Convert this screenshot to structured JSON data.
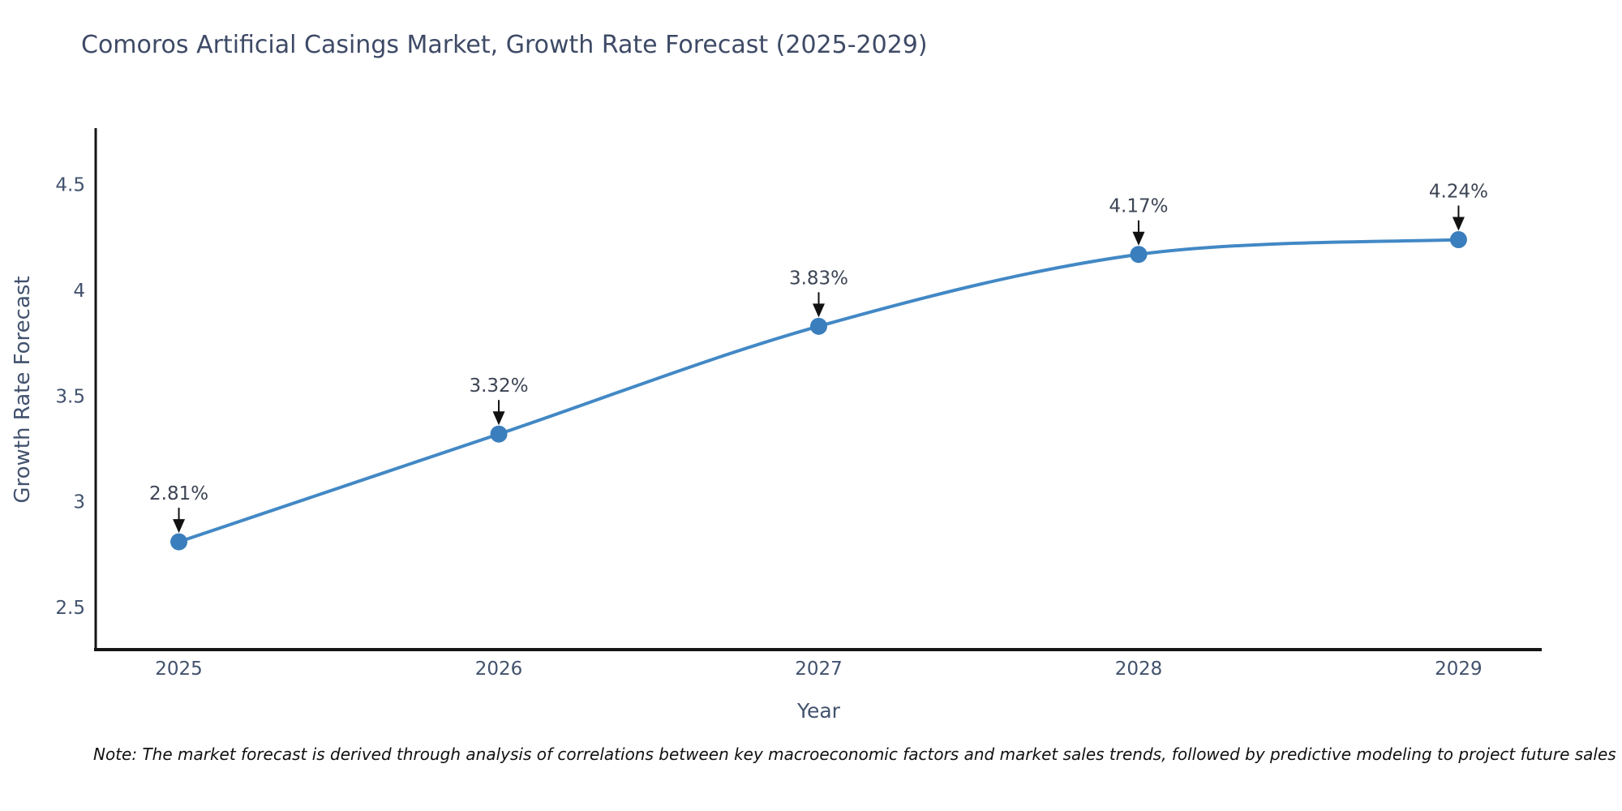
{
  "note": "Note: The market forecast is derived through analysis of correlations between key macroeconomic factors and market sales trends, followed by predictive modeling to project future sales",
  "chart_data": {
    "type": "line",
    "title": "Comoros Artificial Casings Market, Growth Rate Forecast (2025-2029)",
    "xlabel": "Year",
    "ylabel": "Growth Rate Forecast",
    "x": [
      2025,
      2026,
      2027,
      2028,
      2029
    ],
    "values": [
      2.81,
      3.32,
      3.83,
      4.17,
      4.24
    ],
    "point_labels": [
      "2.81%",
      "3.32%",
      "3.83%",
      "4.17%",
      "4.24%"
    ],
    "x_tick_labels": [
      "2025",
      "2026",
      "2027",
      "2028",
      "2029"
    ],
    "y_ticks": [
      2.5,
      3,
      3.5,
      4,
      4.5
    ],
    "y_tick_labels": [
      "2.5",
      "3",
      "3.5",
      "4",
      "4.5"
    ],
    "xlim": [
      2024.74,
      2029.26
    ],
    "ylim": [
      2.3,
      4.76
    ],
    "grid": false,
    "legend_position": "none",
    "line_shape": "spline",
    "colors": {
      "line": "#4288c5",
      "marker": "#3a7ebd",
      "axis_line": "#161616",
      "tick_text": "#42526e",
      "axis_title_text": "#42526e",
      "annotation_text": "#3c4454",
      "annotation_arrow": "#111111",
      "title_text": "#3e4a66",
      "background": "#ffffff"
    }
  }
}
